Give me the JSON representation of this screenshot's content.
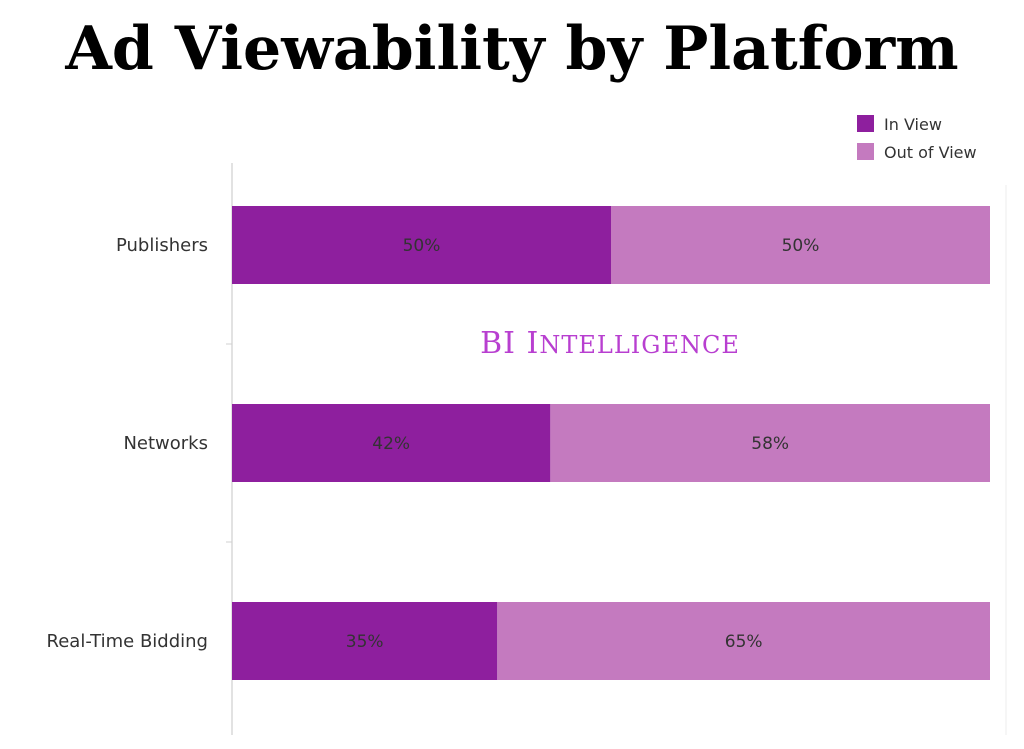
{
  "chart_data": {
    "type": "bar",
    "orientation": "horizontal",
    "stacked": true,
    "title": "Ad Viewability by Platform",
    "categories": [
      "Publishers",
      "Networks",
      "Real-Time Bidding"
    ],
    "series": [
      {
        "name": "In View",
        "values": [
          50,
          42,
          35
        ],
        "labels": [
          "50%",
          "42%",
          "35%"
        ],
        "color": "#8e1f9e"
      },
      {
        "name": "Out of View",
        "values": [
          50,
          58,
          65
        ],
        "labels": [
          "50%",
          "58%",
          "65%"
        ],
        "color": "#c47abf"
      }
    ],
    "xlim": [
      0,
      100
    ],
    "unit": "%",
    "legend": "top-right",
    "grid": false,
    "watermark": "BI Intelligence"
  }
}
